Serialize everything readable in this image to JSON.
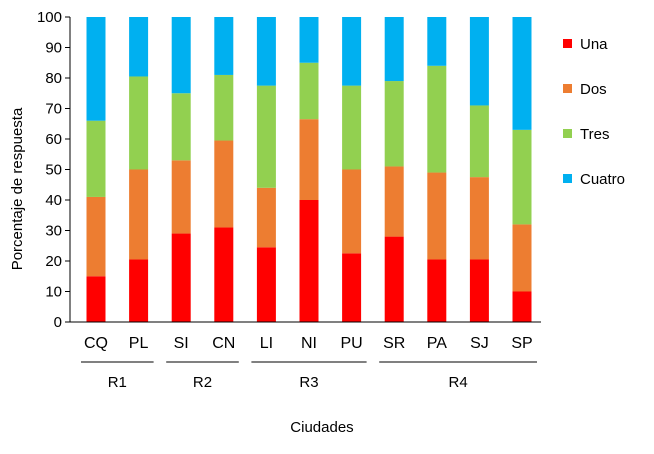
{
  "chart_data": {
    "type": "bar",
    "stacked": true,
    "title": "",
    "xlabel": "Ciudades",
    "ylabel": "Porcentaje de respuesta",
    "ylim": [
      0,
      100
    ],
    "yticks": [
      0,
      10,
      20,
      30,
      40,
      50,
      60,
      70,
      80,
      90,
      100
    ],
    "categories": [
      "CQ",
      "PL",
      "SI",
      "CN",
      "LI",
      "NI",
      "PU",
      "SR",
      "PA",
      "SJ",
      "SP"
    ],
    "groups": [
      {
        "label": "R1",
        "start": 0,
        "end": 1
      },
      {
        "label": "R2",
        "start": 2,
        "end": 3
      },
      {
        "label": "R3",
        "start": 4,
        "end": 6
      },
      {
        "label": "R4",
        "start": 7,
        "end": 10
      }
    ],
    "series": [
      {
        "name": "Una",
        "color": "#ff0000",
        "values": [
          15,
          20.5,
          29,
          31,
          24.5,
          40,
          22.5,
          28,
          20.5,
          20.5,
          10
        ]
      },
      {
        "name": "Dos",
        "color": "#ed7d31",
        "values": [
          26,
          29.5,
          24,
          28.5,
          19.5,
          26.5,
          27.5,
          23,
          28.5,
          27,
          22
        ]
      },
      {
        "name": "Tres",
        "color": "#92d050",
        "values": [
          25,
          30.5,
          22,
          21.5,
          33.5,
          18.5,
          27.5,
          28,
          35,
          23.5,
          31
        ]
      },
      {
        "name": "Cuatro",
        "color": "#00b0f0",
        "values": [
          34,
          19.5,
          25,
          19,
          22.5,
          15,
          22.5,
          21,
          16,
          29,
          37
        ]
      }
    ],
    "legend_position": "right",
    "grid": false
  }
}
